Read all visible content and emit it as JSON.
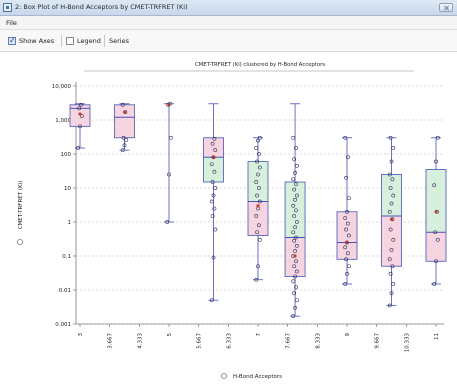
{
  "window": {
    "title": "2: Box Plot of H-Bond Acceptors by CMET-TRFRET (Ki)"
  },
  "menu": {
    "file_label": "File"
  },
  "toolbar": {
    "show_axes_label": "Show Axes",
    "show_axes_checked": true,
    "legend_label": "Legend",
    "legend_checked": false,
    "series_label": "Series"
  },
  "chart_data": {
    "type": "box",
    "title": "CMET-TRFRET (Ki) clustered by H-Bond Acceptors",
    "xlabel": "H-Bond Acceptors",
    "ylabel": "CMET-TRFRET (Ki)",
    "yscale": "log",
    "ylim": [
      0.001,
      10000
    ],
    "grid": true,
    "y_ticks": [
      "10,000",
      "1,000",
      "100",
      "10",
      "1",
      "0.1",
      "0.01",
      "0.001"
    ],
    "x_ticks": [
      "3",
      "3.667",
      "4.333",
      "5",
      "5.667",
      "6.333",
      "7",
      "7.667",
      "8.333",
      "9",
      "9.667",
      "10.333",
      "11"
    ],
    "boxes": [
      {
        "x": 3,
        "min": 150,
        "q1": 650,
        "median": 2200,
        "q3": 2800,
        "max": 3000,
        "mean": 1500,
        "color": "pink",
        "points": [
          150,
          650,
          1300,
          2200,
          2800
        ]
      },
      {
        "x": 4,
        "min": 130,
        "q1": 300,
        "median": 1200,
        "q3": 2800,
        "max": 3000,
        "mean": 1700,
        "color": "pink",
        "points": [
          130,
          180,
          260,
          300,
          1700,
          2800
        ]
      },
      {
        "x": 5,
        "min": 1,
        "q1": 1,
        "median": 300,
        "q3": 2800,
        "max": 3000,
        "mean": 2800,
        "color": "none",
        "points": [
          1,
          25,
          300,
          2800,
          3000
        ]
      },
      {
        "x": 6,
        "min": 0.005,
        "q1": 15,
        "median": 80,
        "q3": 300,
        "max": 3000,
        "mean": 80,
        "color": "pink-green",
        "points": [
          0.005,
          0.09,
          0.6,
          1.5,
          2.5,
          4,
          6,
          10,
          15,
          30,
          50,
          80,
          130,
          200,
          280
        ]
      },
      {
        "x": 7,
        "min": 0.02,
        "q1": 0.4,
        "median": 4,
        "q3": 60,
        "max": 300,
        "mean": 3,
        "color": "green-pink",
        "points": [
          0.02,
          0.05,
          0.3,
          0.5,
          0.8,
          1.5,
          2.5,
          4,
          6,
          10,
          15,
          25,
          40,
          60,
          100,
          150,
          250,
          300
        ]
      },
      {
        "x": 7.833,
        "min": 0.0017,
        "q1": 0.025,
        "median": 0.35,
        "q3": 15,
        "max": 3000,
        "mean": 0.1,
        "color": "green-pink",
        "points": [
          0.0017,
          0.003,
          0.005,
          0.008,
          0.012,
          0.018,
          0.025,
          0.035,
          0.05,
          0.07,
          0.1,
          0.14,
          0.2,
          0.28,
          0.35,
          0.5,
          0.7,
          1,
          1.5,
          2.2,
          3,
          4.5,
          6,
          9,
          13,
          18,
          28,
          45,
          70,
          150,
          300
        ]
      },
      {
        "x": 9,
        "min": 0.015,
        "q1": 0.08,
        "median": 0.25,
        "q3": 2,
        "max": 300,
        "mean": 0.25,
        "color": "pink",
        "points": [
          0.015,
          0.03,
          0.05,
          0.08,
          0.12,
          0.18,
          0.25,
          0.4,
          0.6,
          0.9,
          1.3,
          2,
          5,
          20,
          80,
          300
        ]
      },
      {
        "x": 10,
        "min": 0.0035,
        "q1": 0.05,
        "median": 1.5,
        "q3": 25,
        "max": 300,
        "mean": 1.2,
        "color": "green-pink",
        "points": [
          0.0035,
          0.008,
          0.015,
          0.03,
          0.05,
          0.08,
          0.15,
          0.3,
          0.6,
          1.2,
          2,
          3.5,
          6,
          10,
          18,
          25,
          60,
          150,
          300
        ]
      },
      {
        "x": 11,
        "min": 0.015,
        "q1": 0.07,
        "median": 0.5,
        "q3": 35,
        "max": 300,
        "mean": 2,
        "color": "green-pink",
        "points": [
          0.015,
          0.07,
          0.3,
          0.5,
          2,
          12,
          60,
          300
        ]
      }
    ]
  }
}
